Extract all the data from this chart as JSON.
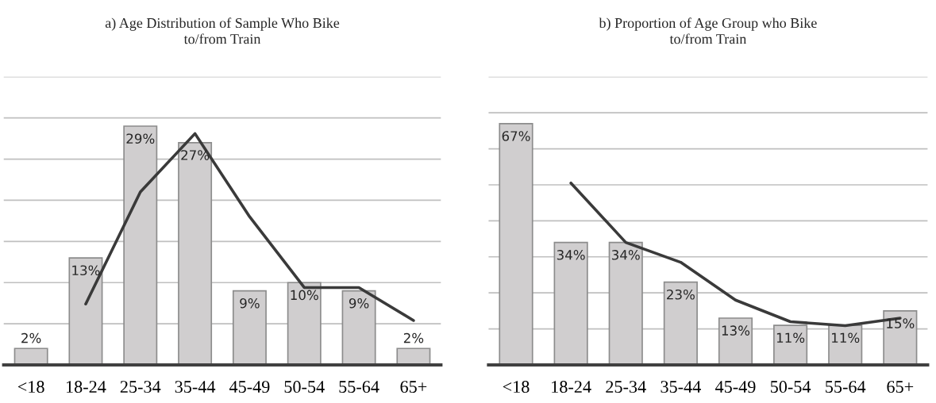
{
  "chart_data": [
    {
      "type": "bar",
      "title": "a) Age Distribution of Sample Who Bike\nto/from Train",
      "categories": [
        "<18",
        "18-24",
        "25-34",
        "35-44",
        "45-49",
        "50-54",
        "55-64",
        "65+"
      ],
      "series": [
        {
          "color": "#d0cecf",
          "values": [
            2,
            13,
            29,
            27,
            9,
            10,
            9,
            2
          ],
          "value_labels": [
            "2%",
            "13%",
            "29%",
            "27%",
            "9%",
            "10%",
            "9%",
            "2%"
          ]
        },
        {
          "type": "line",
          "color": "#3a3a3a",
          "values": [
            null,
            7.4,
            21,
            28.1,
            18,
            9.4,
            9.4,
            5.4
          ]
        }
      ],
      "ylim": [
        0,
        35
      ],
      "yticks": [
        {
          "value": 0,
          "label": null
        },
        {
          "value": 5,
          "label": null
        },
        {
          "value": 10,
          "label": null
        },
        {
          "value": 15,
          "label": null
        },
        {
          "value": 20,
          "label": null
        },
        {
          "value": 25,
          "label": null
        },
        {
          "value": 30,
          "label": null
        },
        {
          "value": 35,
          "label": null
        }
      ],
      "grid": "y",
      "tick_labels": "x"
    },
    {
      "type": "bar",
      "title": "b) Proportion of Age Group who Bike\nto/from Train",
      "categories": [
        "<18",
        "18-24",
        "25-34",
        "35-44",
        "45-49",
        "50-54",
        "55-64",
        "65+"
      ],
      "series": [
        {
          "color": "#d0cecf",
          "values": [
            67,
            34,
            34,
            23,
            13,
            11,
            11,
            15
          ],
          "value_labels": [
            "67%",
            "34%",
            "34%",
            "23%",
            "13%",
            "11%",
            "11%",
            "15%"
          ]
        },
        {
          "type": "line",
          "color": "#3a3a3a",
          "values": [
            null,
            50.5,
            34,
            28.5,
            18,
            12,
            10.9,
            13
          ]
        }
      ],
      "ylim": [
        0,
        80
      ],
      "yticks": [
        {
          "value": 0,
          "label": null
        },
        {
          "value": 10,
          "label": null
        },
        {
          "value": 20,
          "label": null
        },
        {
          "value": 30,
          "label": null
        },
        {
          "value": 40,
          "label": null
        },
        {
          "value": 50,
          "label": null
        },
        {
          "value": 60,
          "label": null
        },
        {
          "value": 70,
          "label": null
        },
        {
          "value": 80,
          "label": null
        }
      ],
      "grid": "y",
      "tick_labels": "x"
    }
  ]
}
